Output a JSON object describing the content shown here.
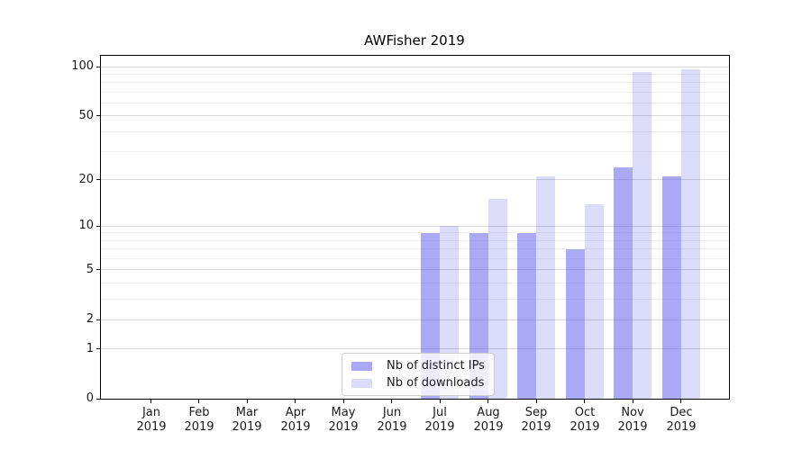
{
  "figure": {
    "background": "#ffffff"
  },
  "chart_data": {
    "type": "bar",
    "title": "AWFisher 2019",
    "xlabel": "",
    "ylabel": "",
    "categories": [
      "Jan 2019",
      "Feb 2019",
      "Mar 2019",
      "Apr 2019",
      "May 2019",
      "Jun 2019",
      "Jul 2019",
      "Aug 2019",
      "Sep 2019",
      "Oct 2019",
      "Nov 2019",
      "Dec 2019"
    ],
    "series": [
      {
        "name": "Nb of distinct IPs",
        "color": "#5353eb",
        "alpha": 0.5,
        "values": [
          0,
          0,
          0,
          0,
          0,
          0,
          9,
          9,
          9,
          7,
          24,
          21
        ]
      },
      {
        "name": "Nb of downloads",
        "color": "#4b4be6",
        "alpha": 0.2,
        "values": [
          0,
          0,
          0,
          0,
          0,
          0,
          10,
          15,
          21,
          14,
          93,
          96
        ]
      }
    ],
    "y_axis": {
      "scale": "log1p",
      "major_ticks": [
        100,
        50,
        20,
        10,
        5,
        2,
        1,
        0
      ],
      "minor_ticks": [
        3,
        4,
        6,
        7,
        8,
        9,
        30,
        40,
        60,
        70,
        80,
        90
      ],
      "max": 118,
      "grid": true
    },
    "legend": {
      "position": "lower center",
      "entries": [
        "Nb of distinct IPs",
        "Nb of downloads"
      ]
    }
  },
  "colors": {
    "grid_major": "#d9d9d9",
    "grid_minor": "#f0f0f0",
    "spine": "#000000",
    "text": "#1a1a1a"
  }
}
